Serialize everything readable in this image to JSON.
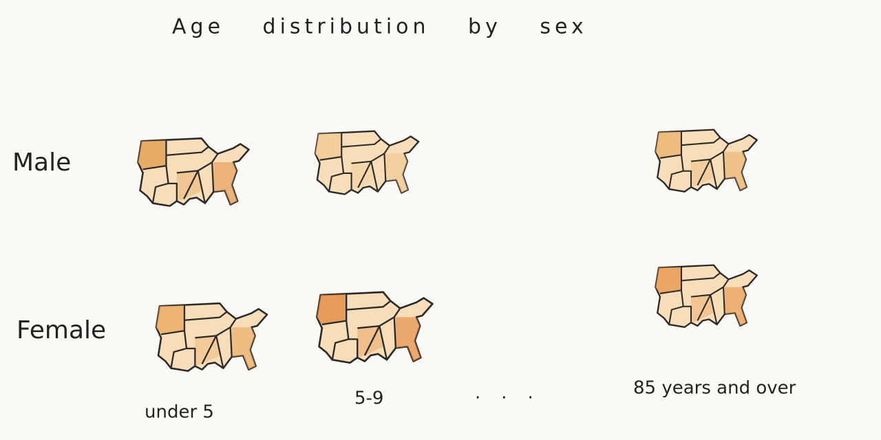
{
  "title": "Age distribution by sex",
  "rows": [
    "Male",
    "Female"
  ],
  "columns": [
    "under 5",
    "5-9",
    "...",
    "85 years and over"
  ]
}
